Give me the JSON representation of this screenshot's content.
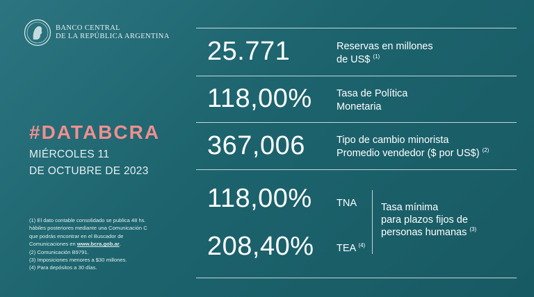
{
  "brand": {
    "line1": "BANCO CENTRAL",
    "line2": "DE LA REPÚBLICA ARGENTINA",
    "icon": "bcra-seal-icon"
  },
  "hashtag": "#DATABCRA",
  "date": {
    "line1": "MIÉRCOLES 11",
    "line2": "DE OCTUBRE DE 2023"
  },
  "indicators": {
    "reserves": {
      "value": "25.771",
      "label_line1": "Reservas en millones",
      "label_line2": "de US$",
      "note": "(1)"
    },
    "policy_rate": {
      "value": "118,00%",
      "label_line1": "Tasa de Política",
      "label_line2": "Monetaria"
    },
    "exchange_rate": {
      "value": "367,006",
      "label_line1": "Tipo de cambio minorista",
      "label_line2": "Promedio vendedor ($ por US$)",
      "note": "(2)"
    },
    "fixed_term": {
      "tna_value": "118,00%",
      "tna_label": "TNA",
      "tea_value": "208,40%",
      "tea_label": "TEA",
      "tea_note": "(4)",
      "label_line1": "Tasa mínima",
      "label_line2": "para plazos fijos de",
      "label_line3": "personas humanas",
      "note": "(3)"
    }
  },
  "footnotes": {
    "n1_line1": "(1) El dato contable consolidado se publica 48 hs.",
    "n1_line2": "hábiles posteriores mediante una Comunicación C",
    "n1_line3": "que podrás encontrar en el Buscador de",
    "n1_line4_prefix": "Comunicaciones en ",
    "n1_link": "www.bcra.gob.ar",
    "n1_line4_suffix": ".",
    "n2": "(2) Comunicación B9791.",
    "n3": "(3) Imposiciones menores a $30 millones.",
    "n4": "(4) Para depósitos a 30 días."
  },
  "colors": {
    "background": "#1f6670",
    "accent": "#f08f8f",
    "text": "#ffffff"
  }
}
